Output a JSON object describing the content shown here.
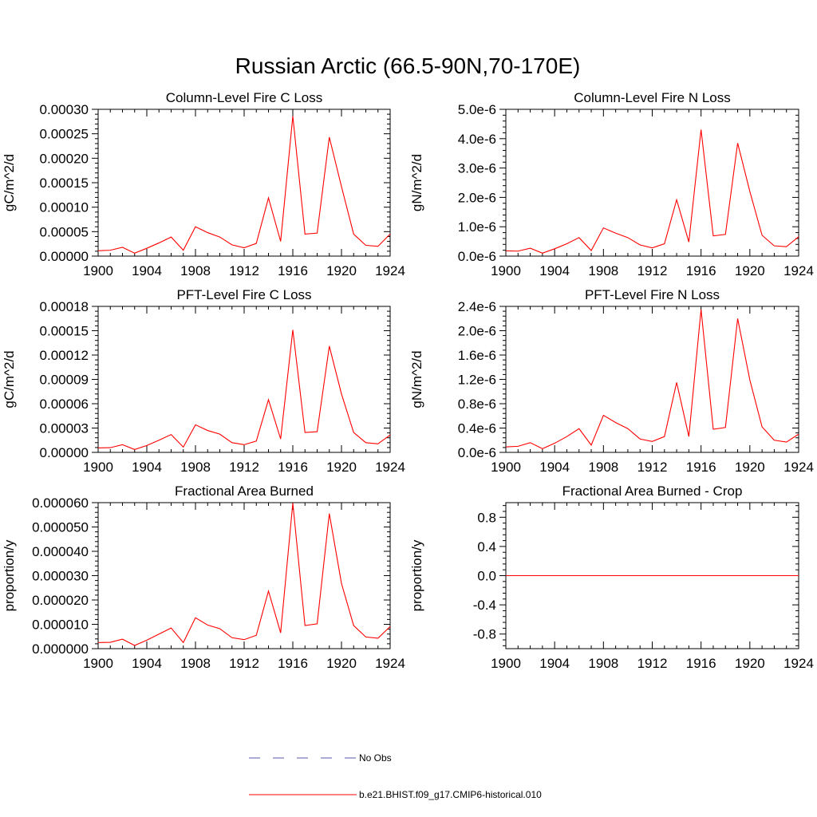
{
  "figure": {
    "title": "Russian Arctic (66.5-90N,70-170E)",
    "colors": {
      "model": "#ff0000",
      "obs": "#5a5aa8",
      "axis": "#000000"
    }
  },
  "legend": {
    "entries": [
      {
        "label": "No Obs",
        "style": "dashed",
        "color": "#5a5aa8"
      },
      {
        "label": "b.e21.BHIST.f09_g17.CMIP6-historical.010",
        "style": "solid",
        "color": "#ff0000"
      }
    ]
  },
  "chart_data": [
    {
      "type": "line",
      "title": "Column-Level Fire C Loss",
      "xlabel": "",
      "ylabel": "gC/m^2/d",
      "xlim": [
        1900,
        1924
      ],
      "ylim": [
        0,
        0.0003
      ],
      "xticks": [
        1900,
        1904,
        1908,
        1912,
        1916,
        1920,
        1924
      ],
      "yticks": [
        "0.00000",
        "0.00005",
        "0.00010",
        "0.00015",
        "0.00020",
        "0.00025",
        "0.00030"
      ],
      "grid": false,
      "x": [
        1900,
        1901,
        1902,
        1903,
        1904,
        1905,
        1906,
        1907,
        1908,
        1909,
        1910,
        1911,
        1912,
        1913,
        1914,
        1915,
        1916,
        1917,
        1918,
        1919,
        1920,
        1921,
        1922,
        1923,
        1924
      ],
      "series": [
        {
          "name": "b.e21.BHIST.f09_g17.CMIP6-historical.010",
          "values": [
            1.1e-05,
            1.2e-05,
            1.8e-05,
            6e-06,
            1.6e-05,
            2.7e-05,
            3.9e-05,
            1.2e-05,
            6e-05,
            4.8e-05,
            3.9e-05,
            2.3e-05,
            1.7e-05,
            2.6e-05,
            0.000119,
            3e-05,
            0.000286,
            4.5e-05,
            4.7e-05,
            0.000243,
            0.000142,
            4.5e-05,
            2.2e-05,
            2e-05,
            4.5e-05
          ]
        }
      ]
    },
    {
      "type": "line",
      "title": "Column-Level Fire N Loss",
      "xlabel": "",
      "ylabel": "gN/m^2/d",
      "xlim": [
        1900,
        1924
      ],
      "ylim": [
        0,
        5e-06
      ],
      "xticks": [
        1900,
        1904,
        1908,
        1912,
        1916,
        1920,
        1924
      ],
      "yticks": [
        "0.0e-6",
        "1.0e-6",
        "2.0e-6",
        "3.0e-6",
        "4.0e-6",
        "5.0e-6"
      ],
      "grid": false,
      "x": [
        1900,
        1901,
        1902,
        1903,
        1904,
        1905,
        1906,
        1907,
        1908,
        1909,
        1910,
        1911,
        1912,
        1913,
        1914,
        1915,
        1916,
        1917,
        1918,
        1919,
        1920,
        1921,
        1922,
        1923,
        1924
      ],
      "series": [
        {
          "name": "b.e21.BHIST.f09_g17.CMIP6-historical.010",
          "values": [
            1.8e-07,
            1.7e-07,
            2.7e-07,
            1e-07,
            2.5e-07,
            4.2e-07,
            6.3e-07,
            1.9e-07,
            9.6e-07,
            7.8e-07,
            6.3e-07,
            3.8e-07,
            2.8e-07,
            4.2e-07,
            1.92e-06,
            4.8e-07,
            4.31e-06,
            6.9e-07,
            7.4e-07,
            3.85e-06,
            2.2e-06,
            7.1e-07,
            3.5e-07,
            3.2e-07,
            6.6e-07
          ]
        }
      ]
    },
    {
      "type": "line",
      "title": "PFT-Level Fire C Loss",
      "xlabel": "",
      "ylabel": "gC/m^2/d",
      "xlim": [
        1900,
        1924
      ],
      "ylim": [
        0,
        0.00018
      ],
      "xticks": [
        1900,
        1904,
        1908,
        1912,
        1916,
        1920,
        1924
      ],
      "yticks": [
        "0.00000",
        "0.00003",
        "0.00006",
        "0.00009",
        "0.00012",
        "0.00015",
        "0.00018"
      ],
      "grid": false,
      "x": [
        1900,
        1901,
        1902,
        1903,
        1904,
        1905,
        1906,
        1907,
        1908,
        1909,
        1910,
        1911,
        1912,
        1913,
        1914,
        1915,
        1916,
        1917,
        1918,
        1919,
        1920,
        1921,
        1922,
        1923,
        1924
      ],
      "series": [
        {
          "name": "b.e21.BHIST.f09_g17.CMIP6-historical.010",
          "values": [
            5.5e-06,
            5.8e-06,
            9.5e-06,
            3.5e-06,
            8.5e-06,
            1.5e-05,
            2.2e-05,
            6.5e-06,
            3.4e-05,
            2.7e-05,
            2.25e-05,
            1.2e-05,
            9.5e-06,
            1.4e-05,
            6.5e-05,
            1.65e-05,
            0.000151,
            2.45e-05,
            2.55e-05,
            0.000131,
            7.2e-05,
            2.45e-05,
            1.2e-05,
            1.05e-05,
            2.15e-05
          ]
        }
      ]
    },
    {
      "type": "line",
      "title": "PFT-Level Fire N Loss",
      "xlabel": "",
      "ylabel": "gN/m^2/d",
      "xlim": [
        1900,
        1924
      ],
      "ylim": [
        0,
        2.4e-06
      ],
      "xticks": [
        1900,
        1904,
        1908,
        1912,
        1916,
        1920,
        1924
      ],
      "yticks": [
        "0.0e-6",
        "0.4e-6",
        "0.8e-6",
        "1.2e-6",
        "1.6e-6",
        "2.0e-6",
        "2.4e-6"
      ],
      "grid": false,
      "x": [
        1900,
        1901,
        1902,
        1903,
        1904,
        1905,
        1906,
        1907,
        1908,
        1909,
        1910,
        1911,
        1912,
        1913,
        1914,
        1915,
        1916,
        1917,
        1918,
        1919,
        1920,
        1921,
        1922,
        1923,
        1924
      ],
      "series": [
        {
          "name": "b.e21.BHIST.f09_g17.CMIP6-historical.010",
          "values": [
            9e-08,
            1e-07,
            1.6e-07,
            6e-08,
            1.5e-07,
            2.6e-07,
            3.9e-07,
            1.2e-07,
            6.1e-07,
            4.9e-07,
            3.9e-07,
            2.2e-07,
            1.8e-07,
            2.6e-07,
            1.15e-06,
            2.6e-07,
            2.35e-06,
            3.8e-07,
            4.1e-07,
            2.2e-06,
            1.19e-06,
            4.2e-07,
            2e-07,
            1.7e-07,
            3e-07
          ]
        }
      ]
    },
    {
      "type": "line",
      "title": "Fractional Area Burned",
      "xlabel": "",
      "ylabel": "proportion/y",
      "xlim": [
        1900,
        1924
      ],
      "ylim": [
        0,
        6e-05
      ],
      "xticks": [
        1900,
        1904,
        1908,
        1912,
        1916,
        1920,
        1924
      ],
      "yticks": [
        "0.000000",
        "0.000010",
        "0.000020",
        "0.000030",
        "0.000040",
        "0.000050",
        "0.000060"
      ],
      "grid": false,
      "x": [
        1900,
        1901,
        1902,
        1903,
        1904,
        1905,
        1906,
        1907,
        1908,
        1909,
        1910,
        1911,
        1912,
        1913,
        1914,
        1915,
        1916,
        1917,
        1918,
        1919,
        1920,
        1921,
        1922,
        1923,
        1924
      ],
      "series": [
        {
          "name": "b.e21.BHIST.f09_g17.CMIP6-historical.010",
          "values": [
            2.5e-06,
            2.6e-06,
            3.9e-06,
            1.3e-06,
            3.5e-06,
            6e-06,
            8.5e-06,
            2.5e-06,
            1.27e-05,
            9.7e-06,
            8.2e-06,
            4.5e-06,
            3.7e-06,
            5.5e-06,
            2.37e-05,
            6.5e-06,
            5.98e-05,
            9.5e-06,
            1.02e-05,
            5.55e-05,
            2.68e-05,
            9.5e-06,
            4.8e-06,
            4.3e-06,
            9.1e-06
          ]
        }
      ]
    },
    {
      "type": "line",
      "title": "Fractional Area Burned - Crop",
      "xlabel": "",
      "ylabel": "proportion/y",
      "xlim": [
        1900,
        1924
      ],
      "ylim": [
        -1.0,
        1.0
      ],
      "xticks": [
        1900,
        1904,
        1908,
        1912,
        1916,
        1920,
        1924
      ],
      "yticks": [
        "-0.8",
        "-0.4",
        "0.0",
        "0.4",
        "0.8"
      ],
      "ytickvalues": [
        -0.8,
        -0.4,
        0.0,
        0.4,
        0.8
      ],
      "grid": false,
      "x": [
        1900,
        1901,
        1902,
        1903,
        1904,
        1905,
        1906,
        1907,
        1908,
        1909,
        1910,
        1911,
        1912,
        1913,
        1914,
        1915,
        1916,
        1917,
        1918,
        1919,
        1920,
        1921,
        1922,
        1923,
        1924
      ],
      "series": [
        {
          "name": "b.e21.BHIST.f09_g17.CMIP6-historical.010",
          "values": [
            0,
            0,
            0,
            0,
            0,
            0,
            0,
            0,
            0,
            0,
            0,
            0,
            0,
            0,
            0,
            0,
            0,
            0,
            0,
            0,
            0,
            0,
            0,
            0,
            0
          ]
        }
      ]
    }
  ]
}
